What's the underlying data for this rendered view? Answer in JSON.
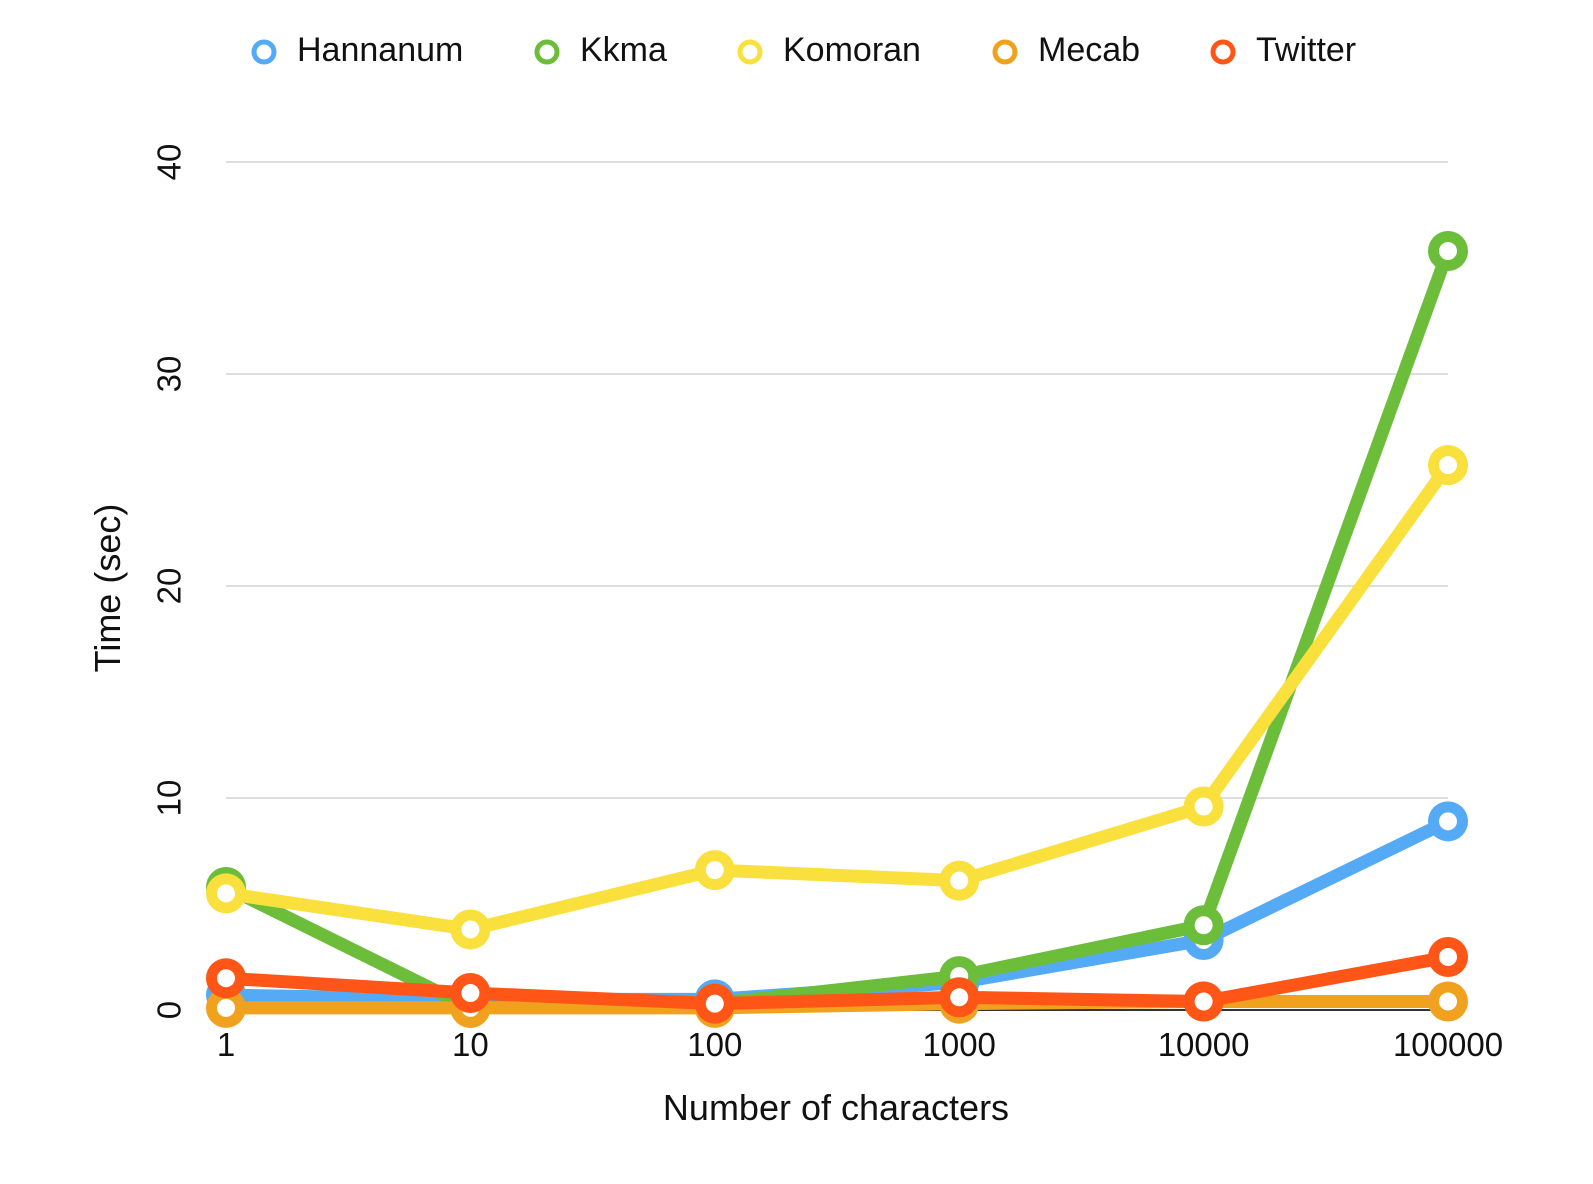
{
  "chart_data": {
    "type": "line",
    "title": "",
    "xlabel": "Number of characters",
    "ylabel": "Time (sec)",
    "x_scale": "log",
    "x": [
      "1",
      "10",
      "100",
      "1000",
      "10000",
      "100000"
    ],
    "yticks": [
      "0",
      "10",
      "20",
      "30",
      "40"
    ],
    "ylim": [
      0,
      40
    ],
    "grid": true,
    "legend_position": "top",
    "series": [
      {
        "name": "Hannanum",
        "color": "#55aaf5",
        "values": [
          0.7,
          0.5,
          0.5,
          1.3,
          3.3,
          8.9
        ]
      },
      {
        "name": "Kkma",
        "color": "#6cbd3a",
        "values": [
          5.8,
          0.1,
          0.3,
          1.6,
          4.0,
          35.8
        ]
      },
      {
        "name": "Komoran",
        "color": "#f9e03c",
        "values": [
          5.5,
          3.8,
          6.6,
          6.1,
          9.6,
          25.7
        ]
      },
      {
        "name": "Mecab",
        "color": "#f0a21e",
        "values": [
          0.1,
          0.1,
          0.1,
          0.3,
          0.4,
          0.4
        ]
      },
      {
        "name": "Twitter",
        "color": "#ff5516",
        "values": [
          1.5,
          0.8,
          0.3,
          0.6,
          0.4,
          2.5
        ]
      }
    ]
  }
}
